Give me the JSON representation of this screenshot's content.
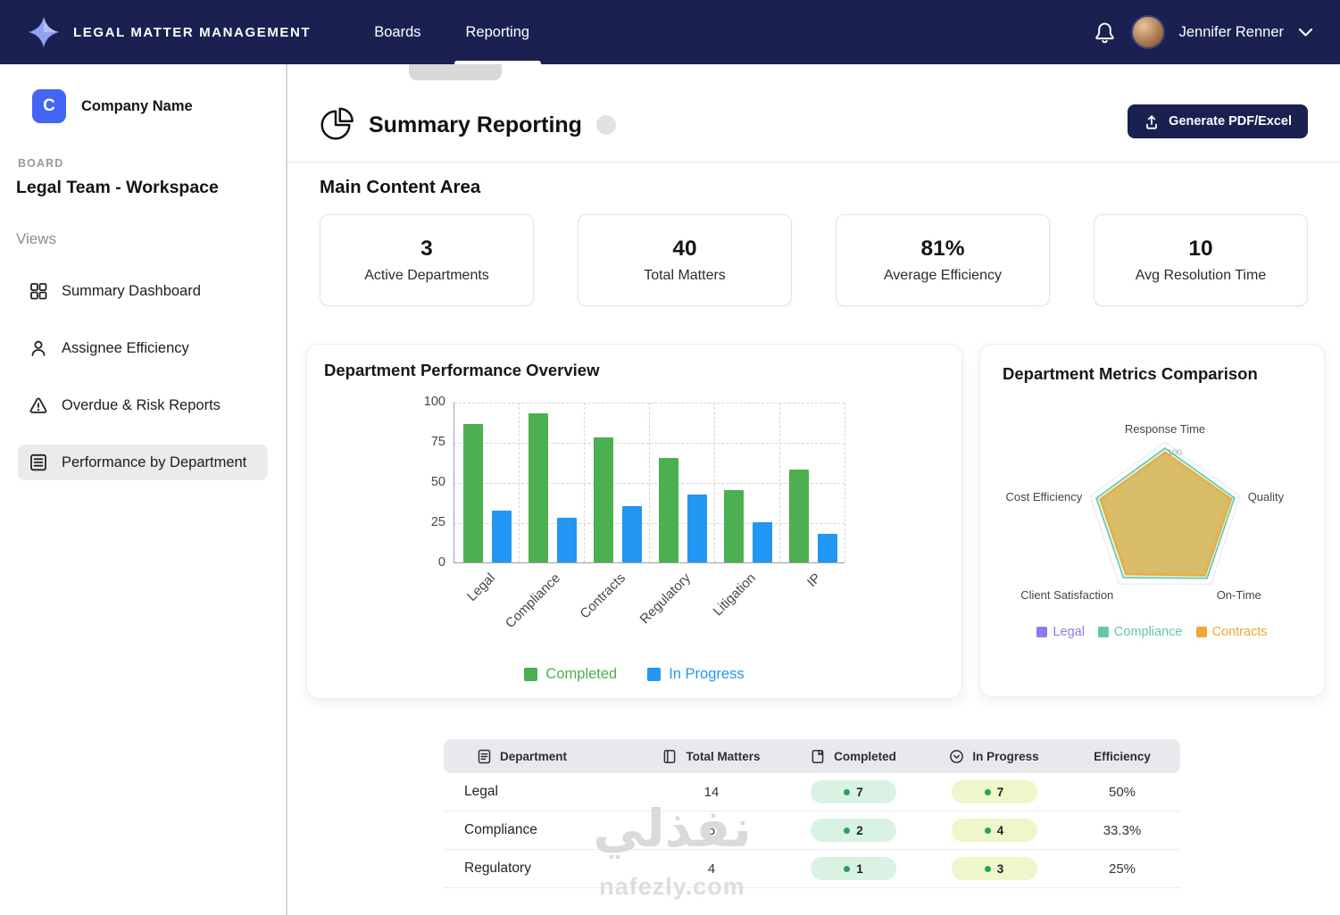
{
  "topbar": {
    "app_title": "LEGAL MATTER MANAGEMENT",
    "nav": [
      {
        "label": "Boards",
        "active": false
      },
      {
        "label": "Reporting",
        "active": true
      }
    ],
    "user_name": "Jennifer Renner"
  },
  "sidebar": {
    "company_initial": "C",
    "company_name": "Company Name",
    "board_label": "BOARD",
    "board_name": "Legal Team - Workspace",
    "views_label": "Views",
    "items": [
      {
        "label": "Summary Dashboard",
        "icon": "grid-icon",
        "active": false
      },
      {
        "label": "Assignee Efficiency",
        "icon": "user-icon",
        "active": false
      },
      {
        "label": "Overdue & Risk Reports",
        "icon": "warning-icon",
        "active": false
      },
      {
        "label": "Performance by Department",
        "icon": "list-icon",
        "active": true
      }
    ]
  },
  "header": {
    "title": "Summary Reporting",
    "generate_button": "Generate PDF/Excel"
  },
  "main": {
    "section_title": "Main Content Area",
    "stats": [
      {
        "value": "3",
        "label": "Active Departments"
      },
      {
        "value": "40",
        "label": "Total Matters"
      },
      {
        "value": "81%",
        "label": "Average Efficiency"
      },
      {
        "value": "10",
        "label": "Avg Resolution Time"
      }
    ]
  },
  "chart_data": [
    {
      "type": "bar",
      "title": "Department Performance Overview",
      "categories": [
        "Legal",
        "Compliance",
        "Contracts",
        "Regulatory",
        "Litigation",
        "IP"
      ],
      "series": [
        {
          "name": "Completed",
          "color": "#4caf50",
          "values": [
            86,
            93,
            78,
            65,
            45,
            58
          ]
        },
        {
          "name": "In Progress",
          "color": "#2196f3",
          "values": [
            32,
            28,
            35,
            42,
            25,
            18
          ]
        }
      ],
      "xlabel": "",
      "ylabel": "",
      "ylim": [
        0,
        100
      ],
      "yticks": [
        0,
        25,
        50,
        75,
        100
      ],
      "grid": true,
      "legend_position": "bottom"
    },
    {
      "type": "radar",
      "title": "Department Metrics Comparison",
      "axes": [
        "Response Time",
        "Quality",
        "On-Time",
        "Client Satisfaction",
        "Cost Efficiency"
      ],
      "rmax": 100,
      "max_label": "100",
      "draw_order": [
        1,
        0,
        2
      ],
      "series": [
        {
          "name": "Legal",
          "color": "#8d7bea",
          "fill": "#8d7bea",
          "fill_opacity": 0.08,
          "values": [
            84,
            86,
            84,
            83,
            85
          ]
        },
        {
          "name": "Compliance",
          "color": "#62c9a3",
          "fill": "#62c9a3",
          "fill_opacity": 0.22,
          "values": [
            92,
            93,
            91,
            90,
            92
          ]
        },
        {
          "name": "Contracts",
          "color": "#f0a830",
          "fill": "#d9bb61",
          "fill_opacity": 0.95,
          "values": [
            87,
            89,
            87,
            85,
            87
          ]
        }
      ],
      "legend_position": "bottom"
    }
  ],
  "table": {
    "columns": [
      {
        "label": "Department",
        "icon": "document-icon"
      },
      {
        "label": "Total Matters",
        "icon": "book-icon"
      },
      {
        "label": "Completed",
        "icon": "notebook-icon"
      },
      {
        "label": "In Progress",
        "icon": "clock-icon"
      },
      {
        "label": "Efficiency",
        "icon": null
      }
    ],
    "rows": [
      {
        "department": "Legal",
        "total": "14",
        "completed": "7",
        "in_progress": "7",
        "efficiency": "50%"
      },
      {
        "department": "Compliance",
        "total": "6",
        "completed": "2",
        "in_progress": "4",
        "efficiency": "33.3%"
      },
      {
        "department": "Regulatory",
        "total": "4",
        "completed": "1",
        "in_progress": "3",
        "efficiency": "25%"
      }
    ]
  },
  "watermark": {
    "line1": "نفذلي",
    "line2": "nafezly.com"
  },
  "colors": {
    "navy": "#1a2151",
    "accent_blue": "#4365f6",
    "bar_green": "#4caf50",
    "bar_blue": "#2196f3"
  }
}
